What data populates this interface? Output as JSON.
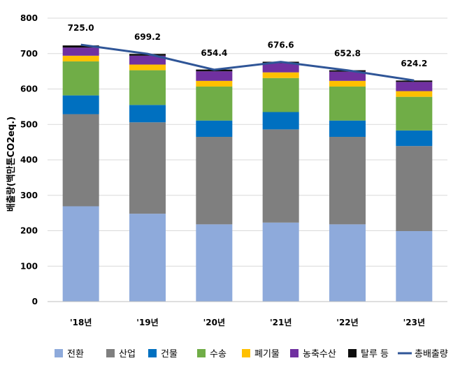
{
  "chart_data": {
    "type": "bar",
    "stacked": true,
    "categories": [
      "'18년",
      "'19년",
      "'20년",
      "'21년",
      "'22년",
      "'23년"
    ],
    "series": [
      {
        "name": "전환",
        "color": "#8eaadb",
        "values": [
          269,
          248,
          218,
          223,
          218,
          199
        ]
      },
      {
        "name": "산업",
        "color": "#7f7f7f",
        "values": [
          260,
          258,
          247,
          263,
          247,
          240
        ]
      },
      {
        "name": "건물",
        "color": "#0070c0",
        "values": [
          53,
          49,
          46,
          49,
          46,
          44
        ]
      },
      {
        "name": "수송",
        "color": "#70ad47",
        "values": [
          96,
          98,
          96,
          96,
          96,
          95
        ]
      },
      {
        "name": "폐기물",
        "color": "#ffc000",
        "values": [
          16,
          16,
          16,
          16,
          16,
          16
        ]
      },
      {
        "name": "농축수산",
        "color": "#7030a0",
        "values": [
          23,
          25,
          27,
          26,
          26,
          26
        ]
      },
      {
        "name": "탈루 등",
        "color": "#0d0d0d",
        "values": [
          6,
          5,
          5,
          4,
          4,
          4
        ]
      }
    ],
    "total": {
      "name": "총배출량",
      "color": "#2f5597",
      "values": [
        725.0,
        699.2,
        654.4,
        676.6,
        652.8,
        624.2
      ],
      "labels": [
        "725.0",
        "699.2",
        "654.4",
        "676.6",
        "652.8",
        "624.2"
      ]
    },
    "ylabel": "배출량(백만톤CO2eq.)",
    "ylim": [
      0,
      800
    ],
    "yticks": [
      0,
      100,
      200,
      300,
      400,
      500,
      600,
      700,
      800
    ],
    "grid": true,
    "legend": "bottom"
  }
}
